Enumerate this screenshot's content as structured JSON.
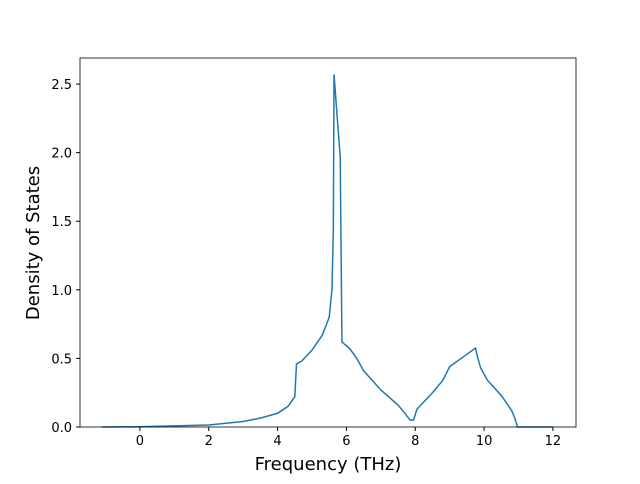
{
  "chart_data": {
    "type": "line",
    "xlabel": "Frequency (THz)",
    "ylabel": "Density of States",
    "x": [
      -1.1,
      0,
      2,
      3,
      3.5,
      4,
      4.3,
      4.5,
      4.55,
      4.7,
      5.0,
      5.3,
      5.5,
      5.58,
      5.62,
      5.64,
      5.75,
      5.82,
      5.87,
      6.1,
      6.3,
      6.5,
      7.0,
      7.5,
      7.7,
      7.85,
      7.95,
      8.05,
      8.5,
      8.8,
      9.0,
      9.5,
      9.75,
      9.82,
      9.9,
      10.1,
      10.5,
      10.8,
      10.9,
      10.97,
      12
    ],
    "series": [
      {
        "color": "#1f77b4",
        "values": [
          0,
          0.002,
          0.015,
          0.04,
          0.065,
          0.1,
          0.15,
          0.22,
          0.46,
          0.48,
          0.56,
          0.67,
          0.8,
          1.0,
          1.45,
          2.57,
          2.2,
          1.97,
          0.62,
          0.57,
          0.5,
          0.41,
          0.27,
          0.16,
          0.1,
          0.05,
          0.05,
          0.13,
          0.25,
          0.34,
          0.44,
          0.53,
          0.575,
          0.5,
          0.43,
          0.34,
          0.23,
          0.12,
          0.06,
          0.0,
          0.0
        ]
      }
    ],
    "xlim": [
      -1.74,
      12.67
    ],
    "ylim": [
      0,
      2.69
    ],
    "xticks": [
      0,
      2,
      4,
      6,
      8,
      10,
      12
    ],
    "yticks": [
      {
        "value": 0,
        "label": "0.0"
      },
      0.5,
      {
        "value": 1,
        "label": "1.0"
      },
      1.5,
      {
        "value": 2,
        "label": "2.0"
      },
      2.5
    ]
  }
}
